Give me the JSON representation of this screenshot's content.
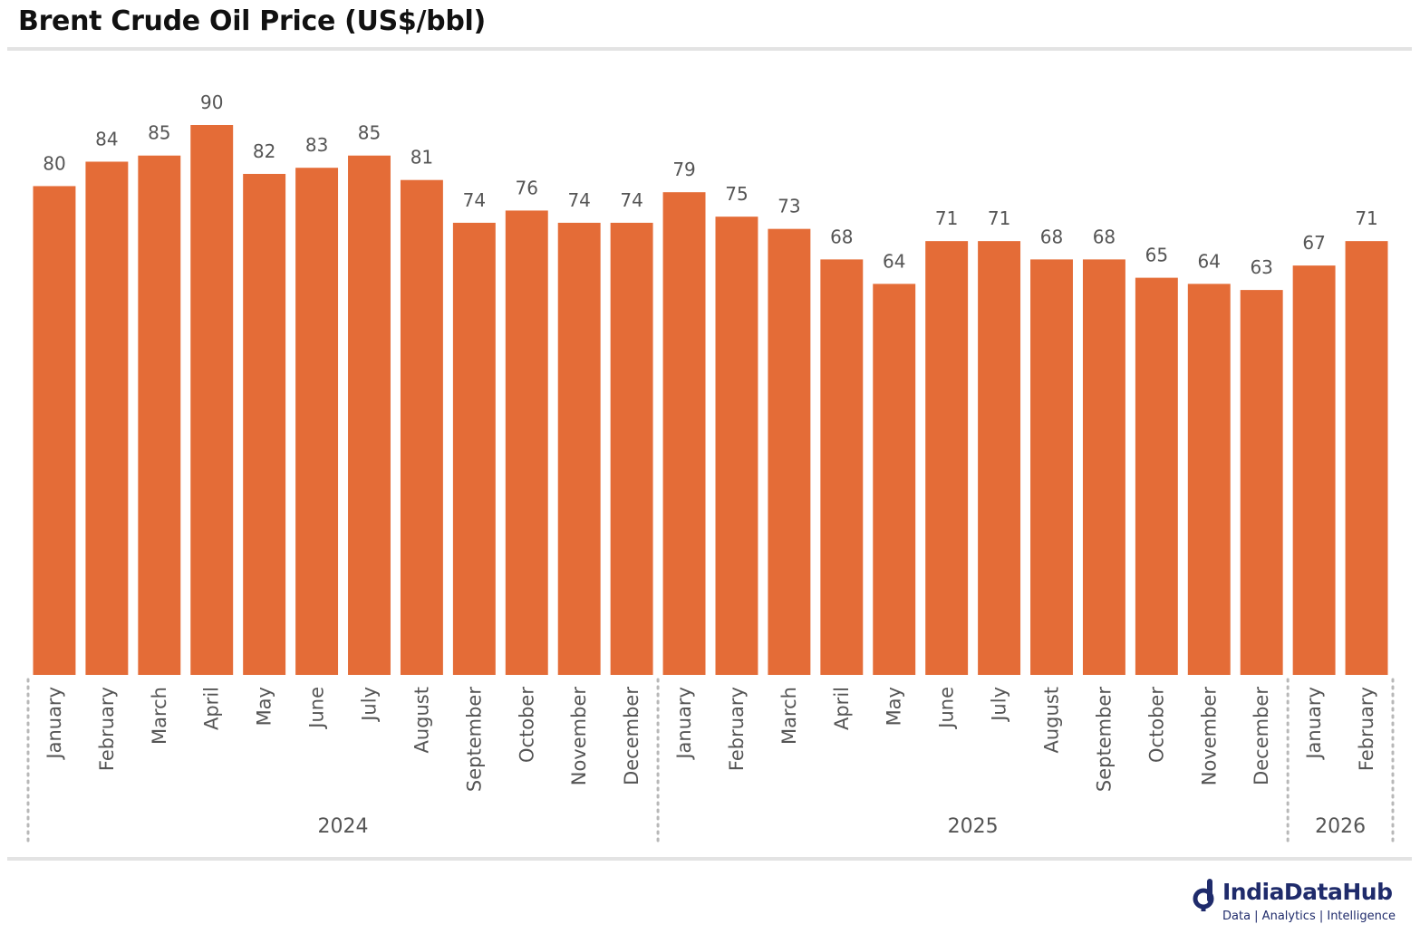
{
  "chart_data": {
    "type": "bar",
    "title": "Brent Crude Oil Price (US$/bbl)",
    "categories": [
      "January",
      "February",
      "March",
      "April",
      "May",
      "June",
      "July",
      "August",
      "September",
      "October",
      "November",
      "December",
      "January",
      "February",
      "March",
      "April",
      "May",
      "June",
      "July",
      "August",
      "September",
      "October",
      "November",
      "December",
      "January",
      "February"
    ],
    "values": [
      80,
      84,
      85,
      90,
      82,
      83,
      85,
      81,
      74,
      76,
      74,
      74,
      79,
      75,
      73,
      68,
      64,
      71,
      71,
      68,
      68,
      65,
      64,
      63,
      67,
      71
    ],
    "groups": [
      {
        "label": "2024",
        "count": 12
      },
      {
        "label": "2025",
        "count": 12
      },
      {
        "label": "2026",
        "count": 2
      }
    ],
    "ylim": [
      0,
      90
    ],
    "xlabel": "",
    "ylabel": "",
    "bar_color": "#E46C37",
    "label_color": "#555555",
    "grid": false,
    "legend": "none"
  },
  "brand": {
    "name": "IndiaDataHub",
    "tagline": "Data | Analytics | Intelligence",
    "color": "#1f2b6b",
    "icon": "indiadatahub-logo-icon"
  }
}
